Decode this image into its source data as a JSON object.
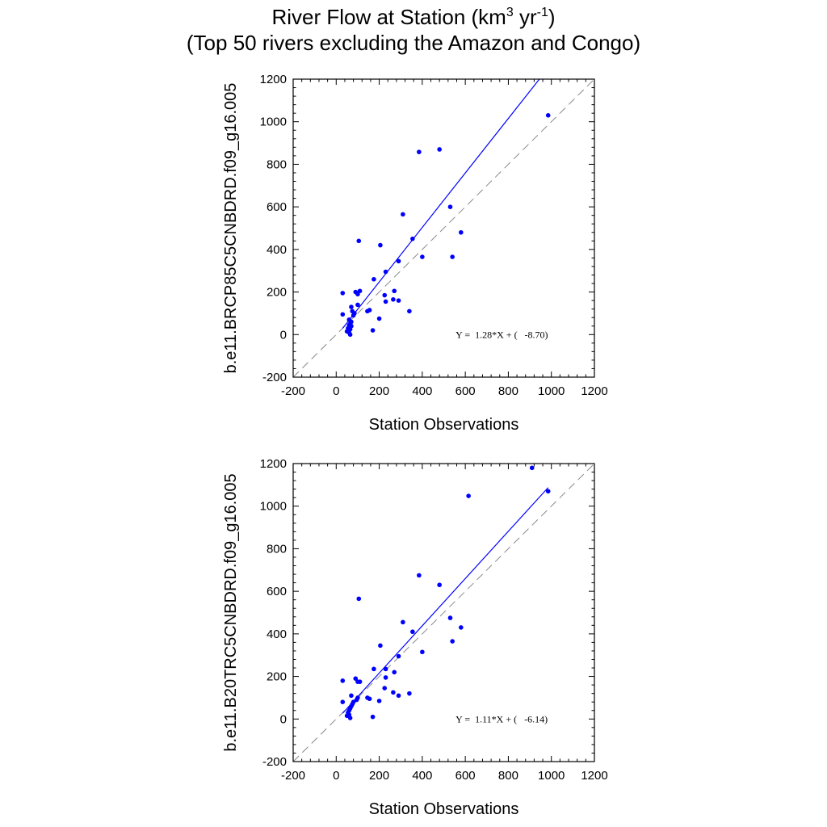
{
  "title": {
    "line1_prefix": "River Flow at Station (km",
    "line1_sup1": "3",
    "line1_mid": " yr",
    "line1_sup2": "-1",
    "line1_suffix": ")",
    "line2": "(Top 50 rivers excluding the Amazon and Congo)"
  },
  "chart_data": [
    {
      "type": "scatter",
      "title": "",
      "xlabel": "Station Observations",
      "ylabel": "b.e11.BRCP85C5CNBDRD.f09_g16.005",
      "xlim": [
        -200,
        1200
      ],
      "ylim": [
        -200,
        1200
      ],
      "xticks": [
        "-200",
        "0",
        "200",
        "400",
        "600",
        "800",
        "1000",
        "1200"
      ],
      "yticks": [
        "-200",
        "0",
        "200",
        "400",
        "600",
        "800",
        "1000",
        "1200"
      ],
      "equation": "Y =  1.28*X + (   -8.70)",
      "fit": {
        "slope": 1.28,
        "intercept": -8.7,
        "x_start": 30,
        "x_end": 945
      },
      "one_to_one": true,
      "marker_color": "#0000ff",
      "fit_color": "#0000ff",
      "points": [
        [
          985,
          1030
        ],
        [
          480,
          870
        ],
        [
          385,
          858
        ],
        [
          310,
          565
        ],
        [
          530,
          600
        ],
        [
          580,
          480
        ],
        [
          540,
          365
        ],
        [
          400,
          365
        ],
        [
          355,
          450
        ],
        [
          290,
          345
        ],
        [
          230,
          295
        ],
        [
          205,
          420
        ],
        [
          105,
          440
        ],
        [
          175,
          260
        ],
        [
          270,
          205
        ],
        [
          225,
          185
        ],
        [
          265,
          165
        ],
        [
          290,
          160
        ],
        [
          230,
          155
        ],
        [
          340,
          110
        ],
        [
          145,
          110
        ],
        [
          155,
          115
        ],
        [
          200,
          75
        ],
        [
          170,
          20
        ],
        [
          110,
          205
        ],
        [
          90,
          200
        ],
        [
          100,
          190
        ],
        [
          30,
          195
        ],
        [
          100,
          140
        ],
        [
          70,
          130
        ],
        [
          75,
          110
        ],
        [
          85,
          100
        ],
        [
          80,
          90
        ],
        [
          30,
          95
        ],
        [
          60,
          70
        ],
        [
          70,
          60
        ],
        [
          65,
          50
        ],
        [
          60,
          45
        ],
        [
          70,
          40
        ],
        [
          55,
          30
        ],
        [
          65,
          25
        ],
        [
          50,
          15
        ],
        [
          60,
          10
        ],
        [
          65,
          0
        ]
      ]
    },
    {
      "type": "scatter",
      "title": "",
      "xlabel": "Station Observations",
      "ylabel": "b.e11.B20TRC5CNBDRD.f09_g16.005",
      "xlim": [
        -200,
        1200
      ],
      "ylim": [
        -200,
        1200
      ],
      "xticks": [
        "-200",
        "0",
        "200",
        "400",
        "600",
        "800",
        "1000",
        "1200"
      ],
      "yticks": [
        "-200",
        "0",
        "200",
        "400",
        "600",
        "800",
        "1000",
        "1200"
      ],
      "equation": "Y =  1.11*X + (   -6.14)",
      "fit": {
        "slope": 1.11,
        "intercept": -6.14,
        "x_start": 30,
        "x_end": 985
      },
      "one_to_one": true,
      "marker_color": "#0000ff",
      "fit_color": "#0000ff",
      "points": [
        [
          910,
          1180
        ],
        [
          985,
          1070
        ],
        [
          615,
          1048
        ],
        [
          385,
          675
        ],
        [
          480,
          630
        ],
        [
          105,
          565
        ],
        [
          310,
          455
        ],
        [
          530,
          475
        ],
        [
          580,
          430
        ],
        [
          355,
          410
        ],
        [
          400,
          315
        ],
        [
          540,
          365
        ],
        [
          205,
          345
        ],
        [
          290,
          295
        ],
        [
          230,
          235
        ],
        [
          270,
          220
        ],
        [
          175,
          235
        ],
        [
          230,
          195
        ],
        [
          225,
          145
        ],
        [
          265,
          125
        ],
        [
          290,
          110
        ],
        [
          340,
          120
        ],
        [
          145,
          100
        ],
        [
          155,
          95
        ],
        [
          200,
          85
        ],
        [
          170,
          10
        ],
        [
          90,
          190
        ],
        [
          100,
          175
        ],
        [
          110,
          175
        ],
        [
          30,
          180
        ],
        [
          100,
          100
        ],
        [
          95,
          90
        ],
        [
          80,
          80
        ],
        [
          70,
          110
        ],
        [
          30,
          80
        ],
        [
          75,
          70
        ],
        [
          70,
          60
        ],
        [
          65,
          50
        ],
        [
          60,
          40
        ],
        [
          55,
          30
        ],
        [
          60,
          20
        ],
        [
          50,
          15
        ],
        [
          65,
          5
        ]
      ]
    }
  ]
}
